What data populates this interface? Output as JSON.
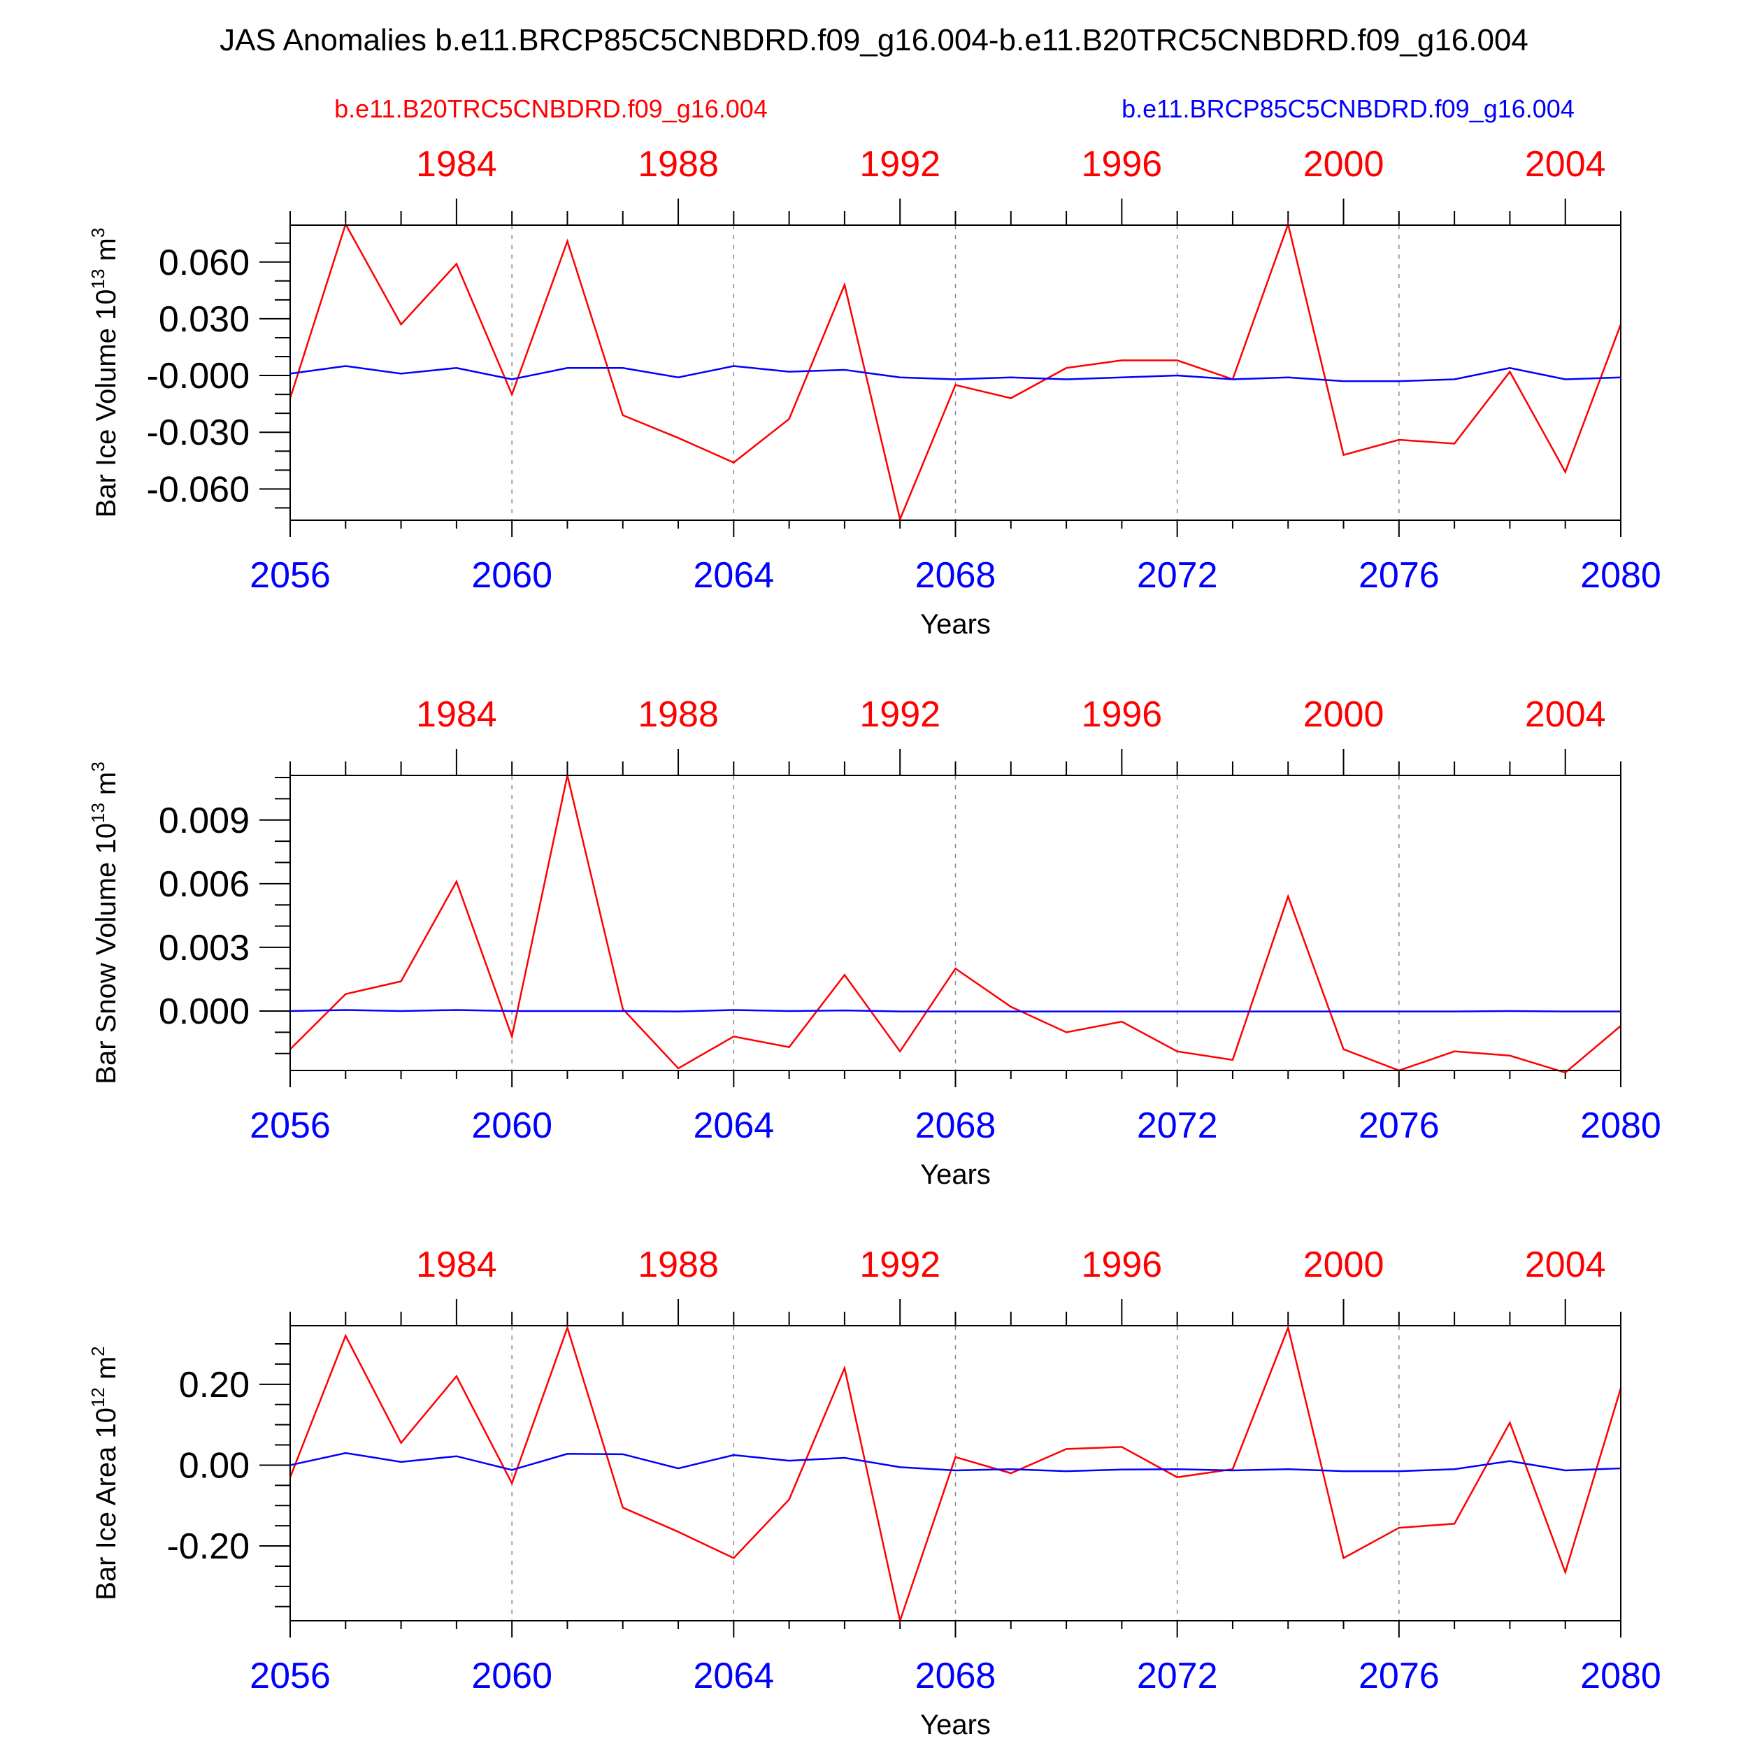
{
  "title": "JAS Anomalies b.e11.BRCP85C5CNBDRD.f09_g16.004-b.e11.B20TRC5CNBDRD.f09_g16.004",
  "legend": {
    "red_label": "b.e11.B20TRC5CNBDRD.f09_g16.004",
    "blue_label": "b.e11.BRCP85C5CNBDRD.f09_g16.004"
  },
  "colors": {
    "red": "#ff0000",
    "blue": "#0000ff",
    "frame": "#000000",
    "grid": "#888888"
  },
  "xlabel": "Years",
  "bottom_ticks": [
    "2056",
    "2060",
    "2064",
    "2068",
    "2072",
    "2076",
    "2080"
  ],
  "top_ticks": [
    "1984",
    "1988",
    "1992",
    "1996",
    "2000",
    "2004"
  ],
  "chart_data": [
    {
      "type": "line",
      "ylabel": "Bar Ice Volume 10",
      "ylabel_exp": "13",
      "ylabel_unit": " m",
      "ylabel_unit_exp": "3",
      "ylim": [
        -0.0765,
        0.0795
      ],
      "yticks": [
        0.06,
        0.03,
        0.0,
        -0.03,
        -0.06
      ],
      "ytick_labels": [
        "0.060",
        "0.030",
        "-0.000",
        "-0.030",
        "-0.060"
      ],
      "yminor_step": 0.01,
      "xlim": [
        2056,
        2080
      ],
      "x_bottom": [
        2056,
        2057,
        2058,
        2059,
        2060,
        2061,
        2062,
        2063,
        2064,
        2065,
        2066,
        2067,
        2068,
        2069,
        2070,
        2071,
        2072,
        2073,
        2074,
        2075,
        2076,
        2077,
        2078,
        2079,
        2080
      ],
      "x_top": [
        1981,
        1982,
        1983,
        1984,
        1985,
        1986,
        1987,
        1988,
        1989,
        1990,
        1991,
        1992,
        1993,
        1994,
        1995,
        1996,
        1997,
        1998,
        1999,
        2000,
        2001,
        2002,
        2003,
        2004,
        2005
      ],
      "series": [
        {
          "name": "b.e11.B20TRC5CNBDRD.f09_g16.004",
          "color": "red",
          "values": [
            -0.012,
            0.08,
            0.027,
            0.059,
            -0.01,
            0.071,
            -0.021,
            -0.033,
            -0.046,
            -0.023,
            0.048,
            -0.076,
            -0.005,
            -0.012,
            0.004,
            0.008,
            0.008,
            -0.002,
            0.08,
            -0.042,
            -0.034,
            -0.036,
            0.002,
            -0.051,
            0.027
          ]
        },
        {
          "name": "b.e11.BRCP85C5CNBDRD.f09_g16.004",
          "color": "blue",
          "values": [
            0.001,
            0.005,
            0.001,
            0.004,
            -0.002,
            0.004,
            0.004,
            -0.001,
            0.005,
            0.002,
            0.003,
            -0.001,
            -0.002,
            -0.001,
            -0.002,
            -0.001,
            0.0,
            -0.002,
            -0.001,
            -0.003,
            -0.003,
            -0.002,
            0.004,
            -0.002,
            -0.001
          ]
        }
      ]
    },
    {
      "type": "line",
      "ylabel": "Bar Snow Volume 10",
      "ylabel_exp": "13",
      "ylabel_unit": " m",
      "ylabel_unit_exp": "3",
      "ylim": [
        -0.0028,
        0.0111
      ],
      "yticks": [
        0.009,
        0.006,
        0.003,
        0.0
      ],
      "ytick_labels": [
        "0.009",
        "0.006",
        "0.003",
        "0.000"
      ],
      "yminor_step": 0.001,
      "xlim": [
        2056,
        2080
      ],
      "x_bottom": [
        2056,
        2057,
        2058,
        2059,
        2060,
        2061,
        2062,
        2063,
        2064,
        2065,
        2066,
        2067,
        2068,
        2069,
        2070,
        2071,
        2072,
        2073,
        2074,
        2075,
        2076,
        2077,
        2078,
        2079,
        2080
      ],
      "x_top": [
        1981,
        1982,
        1983,
        1984,
        1985,
        1986,
        1987,
        1988,
        1989,
        1990,
        1991,
        1992,
        1993,
        1994,
        1995,
        1996,
        1997,
        1998,
        1999,
        2000,
        2001,
        2002,
        2003,
        2004,
        2005
      ],
      "series": [
        {
          "name": "b.e11.B20TRC5CNBDRD.f09_g16.004",
          "color": "red",
          "values": [
            -0.0018,
            0.0008,
            0.0014,
            0.0061,
            -0.0012,
            0.0111,
            0.0001,
            -0.0027,
            -0.0012,
            -0.0017,
            0.0017,
            -0.0019,
            0.002,
            0.0002,
            -0.001,
            -0.0005,
            -0.0019,
            -0.0023,
            0.0054,
            -0.0018,
            -0.0028,
            -0.0019,
            -0.0021,
            -0.0029,
            -0.0007
          ]
        },
        {
          "name": "b.e11.BRCP85C5CNBDRD.f09_g16.004",
          "color": "blue",
          "values": [
            0.0,
            5e-05,
            0.0,
            5e-05,
            0.0,
            0.0,
            0.0,
            -2e-05,
            5e-05,
            0.0,
            3e-05,
            -2e-05,
            -2e-05,
            -2e-05,
            -2e-05,
            -2e-05,
            -2e-05,
            -2e-05,
            -2e-05,
            -2e-05,
            -2e-05,
            -2e-05,
            0.0,
            -2e-05,
            -2e-05
          ]
        }
      ]
    },
    {
      "type": "line",
      "ylabel": "Bar Ice Area 10",
      "ylabel_exp": "12",
      "ylabel_unit": " m",
      "ylabel_unit_exp": "2",
      "ylim": [
        -0.385,
        0.345
      ],
      "yticks": [
        0.2,
        0.0,
        -0.2
      ],
      "ytick_labels": [
        "0.20",
        "0.00",
        "-0.20"
      ],
      "yminor_step": 0.05,
      "xlim": [
        2056,
        2080
      ],
      "x_bottom": [
        2056,
        2057,
        2058,
        2059,
        2060,
        2061,
        2062,
        2063,
        2064,
        2065,
        2066,
        2067,
        2068,
        2069,
        2070,
        2071,
        2072,
        2073,
        2074,
        2075,
        2076,
        2077,
        2078,
        2079,
        2080
      ],
      "x_top": [
        1981,
        1982,
        1983,
        1984,
        1985,
        1986,
        1987,
        1988,
        1989,
        1990,
        1991,
        1992,
        1993,
        1994,
        1995,
        1996,
        1997,
        1998,
        1999,
        2000,
        2001,
        2002,
        2003,
        2004,
        2005
      ],
      "series": [
        {
          "name": "b.e11.B20TRC5CNBDRD.f09_g16.004",
          "color": "red",
          "values": [
            -0.03,
            0.32,
            0.055,
            0.22,
            -0.045,
            0.34,
            -0.105,
            -0.165,
            -0.23,
            -0.085,
            0.24,
            -0.385,
            0.02,
            -0.02,
            0.04,
            0.045,
            -0.03,
            -0.01,
            0.34,
            -0.23,
            -0.155,
            -0.145,
            0.105,
            -0.265,
            0.19
          ]
        },
        {
          "name": "b.e11.BRCP85C5CNBDRD.f09_g16.004",
          "color": "blue",
          "values": [
            0.0,
            0.03,
            0.008,
            0.022,
            -0.012,
            0.028,
            0.027,
            -0.008,
            0.025,
            0.011,
            0.018,
            -0.005,
            -0.013,
            -0.01,
            -0.015,
            -0.011,
            -0.01,
            -0.013,
            -0.01,
            -0.015,
            -0.015,
            -0.01,
            0.01,
            -0.013,
            -0.008
          ]
        }
      ]
    }
  ]
}
